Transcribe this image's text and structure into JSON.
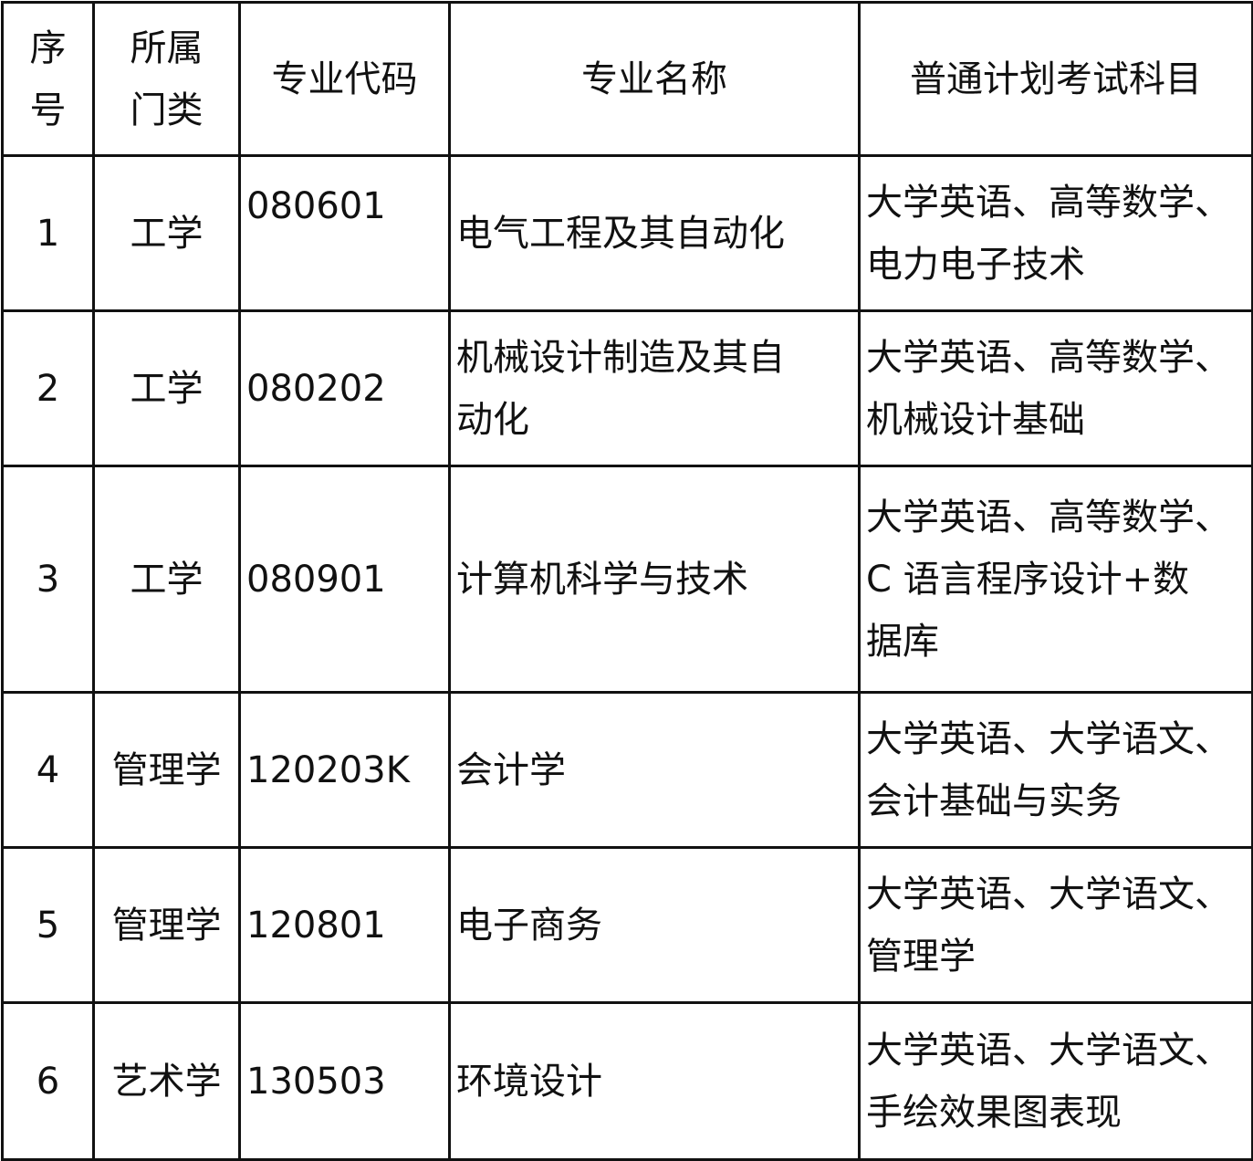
{
  "headers": {
    "index": [
      "序",
      "号"
    ],
    "category": [
      "所属",
      "门类"
    ],
    "code": "专业代码",
    "name": "专业名称",
    "subjects": "普通计划考试科目"
  },
  "rows": [
    {
      "index": "1",
      "category": "工学",
      "code": "080601",
      "name": [
        "电气工程及其自动化"
      ],
      "subjects": [
        "大学英语、高等数学、",
        "电力电子技术"
      ]
    },
    {
      "index": "2",
      "category": "工学",
      "code": "080202",
      "name": [
        "机械设计制造及其自",
        "动化"
      ],
      "subjects": [
        "大学英语、高等数学、",
        "机械设计基础"
      ]
    },
    {
      "index": "3",
      "category": "工学",
      "code": "080901",
      "name": [
        "计算机科学与技术"
      ],
      "subjects": [
        "大学英语、高等数学、",
        "C 语言程序设计+数",
        "据库"
      ]
    },
    {
      "index": "4",
      "category": "管理学",
      "code": "120203K",
      "name": [
        "会计学"
      ],
      "subjects": [
        "大学英语、大学语文、",
        "会计基础与实务"
      ]
    },
    {
      "index": "5",
      "category": "管理学",
      "code": "120801",
      "name": [
        "电子商务"
      ],
      "subjects": [
        "大学英语、大学语文、",
        "管理学"
      ]
    },
    {
      "index": "6",
      "category": "艺术学",
      "code": "130503",
      "name": [
        "环境设计"
      ],
      "subjects": [
        "大学英语、大学语文、",
        "手绘效果图表现"
      ]
    }
  ]
}
